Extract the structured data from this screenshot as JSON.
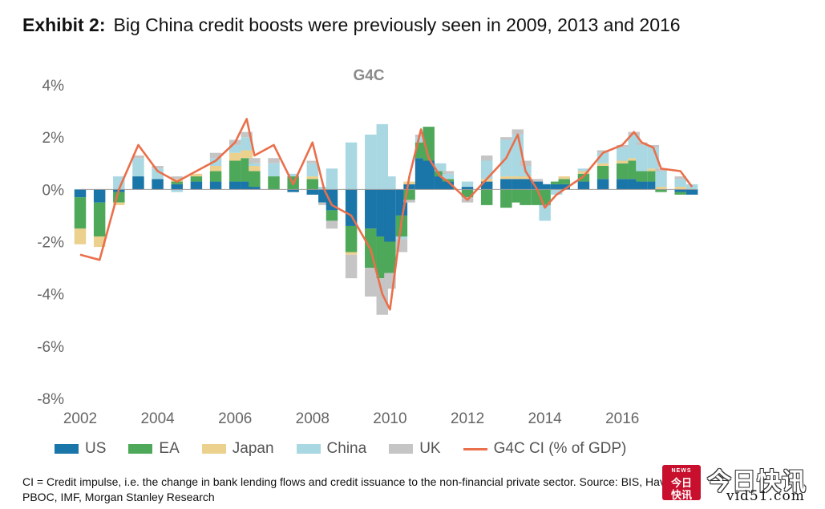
{
  "exhibit": {
    "lead": "Exhibit 2:",
    "title": "Big China credit boosts were previously seen in 2009, 2013 and 2016"
  },
  "chart_data": {
    "type": "bar",
    "subtype": "stacked-bar-with-line",
    "title": "G4C",
    "xlabel": "",
    "ylabel": "",
    "ylim": [
      -8,
      4
    ],
    "y_ticks": [
      "4%",
      "2%",
      "0%",
      "-2%",
      "-4%",
      "-6%",
      "-8%"
    ],
    "y_tick_values": [
      4,
      2,
      0,
      -2,
      -4,
      -6,
      -8
    ],
    "x_ticks": [
      "2002",
      "2004",
      "2006",
      "2008",
      "2010",
      "2012",
      "2014",
      "2016"
    ],
    "x_tick_values": [
      2002,
      2004,
      2006,
      2008,
      2010,
      2012,
      2014,
      2016
    ],
    "xlim": [
      2002,
      2017.9
    ],
    "grid": false,
    "legend_placement": "bottom",
    "colors": {
      "US": "#1a75a8",
      "EA": "#4ea85a",
      "Japan": "#ecd08e",
      "China": "#a9d8e2",
      "UK": "#c5c5c5",
      "G4C CI (% of GDP)": "#ea6f4b"
    },
    "x": [
      2002.0,
      2002.5,
      2003.0,
      2003.5,
      2004.0,
      2004.5,
      2005.0,
      2005.5,
      2006.0,
      2006.3,
      2006.5,
      2007.0,
      2007.5,
      2008.0,
      2008.3,
      2008.5,
      2009.0,
      2009.5,
      2009.8,
      2010.0,
      2010.3,
      2010.5,
      2010.8,
      2011.0,
      2011.3,
      2011.5,
      2012.0,
      2012.5,
      2013.0,
      2013.3,
      2013.5,
      2013.8,
      2014.0,
      2014.3,
      2014.5,
      2015.0,
      2015.5,
      2016.0,
      2016.3,
      2016.5,
      2016.8,
      2017.0,
      2017.5,
      2017.8
    ],
    "series": [
      {
        "name": "US",
        "kind": "bar",
        "values": [
          -0.3,
          -0.5,
          -0.1,
          0.5,
          0.4,
          0.2,
          0.3,
          0.3,
          0.3,
          0.3,
          0.1,
          0.0,
          -0.1,
          -0.2,
          -0.5,
          -0.8,
          -1.4,
          -1.5,
          -1.8,
          -2.0,
          -1.0,
          0.2,
          1.2,
          1.1,
          0.5,
          0.3,
          0.1,
          0.3,
          0.4,
          0.4,
          0.4,
          0.3,
          0.2,
          0.2,
          0.2,
          0.3,
          0.4,
          0.4,
          0.4,
          0.3,
          0.3,
          0.0,
          -0.1,
          -0.2
        ]
      },
      {
        "name": "EA",
        "kind": "bar",
        "values": [
          -1.2,
          -1.3,
          -0.4,
          0.0,
          0.0,
          0.1,
          0.2,
          0.4,
          0.8,
          0.9,
          0.6,
          0.5,
          0.5,
          0.4,
          0.0,
          -0.4,
          -1.0,
          -1.5,
          -1.6,
          -1.2,
          -0.8,
          -0.4,
          0.6,
          1.3,
          0.2,
          0.1,
          -0.3,
          -0.6,
          -0.7,
          -0.5,
          -0.6,
          -0.6,
          -0.6,
          0.1,
          0.2,
          0.3,
          0.5,
          0.6,
          0.7,
          0.4,
          0.4,
          -0.1,
          -0.1,
          0.0
        ]
      },
      {
        "name": "Japan",
        "kind": "bar",
        "values": [
          -0.6,
          -0.4,
          -0.1,
          0.0,
          0.0,
          0.1,
          0.1,
          0.2,
          0.3,
          0.3,
          0.2,
          0.0,
          0.0,
          0.1,
          0.0,
          0.0,
          -0.1,
          0.0,
          0.0,
          0.0,
          0.0,
          0.1,
          0.0,
          0.0,
          0.0,
          0.0,
          0.0,
          0.1,
          0.1,
          0.1,
          0.1,
          0.0,
          0.0,
          0.0,
          0.1,
          0.1,
          0.1,
          0.1,
          0.1,
          0.0,
          0.1,
          0.1,
          0.1,
          0.0
        ]
      },
      {
        "name": "China",
        "kind": "bar",
        "values": [
          0.0,
          0.0,
          0.5,
          0.7,
          0.4,
          -0.1,
          0.0,
          0.3,
          0.3,
          0.5,
          0.1,
          0.5,
          0.1,
          0.5,
          0.1,
          0.8,
          1.8,
          2.1,
          2.5,
          0.5,
          -0.1,
          0.0,
          0.2,
          0.0,
          0.3,
          0.2,
          0.2,
          0.7,
          1.4,
          1.6,
          0.4,
          0.0,
          -0.6,
          -0.2,
          0.0,
          0.1,
          0.4,
          0.5,
          0.9,
          1.0,
          0.8,
          0.6,
          0.3,
          0.2
        ]
      },
      {
        "name": "UK",
        "kind": "bar",
        "values": [
          0.0,
          0.0,
          0.0,
          0.1,
          0.1,
          0.1,
          0.0,
          0.2,
          0.2,
          0.2,
          0.2,
          0.2,
          0.0,
          0.1,
          -0.1,
          -0.3,
          -0.9,
          -1.1,
          -1.4,
          -0.6,
          -0.5,
          -0.1,
          0.1,
          0.0,
          0.0,
          0.1,
          -0.2,
          0.2,
          0.1,
          0.2,
          0.2,
          0.1,
          0.0,
          0.0,
          0.0,
          0.0,
          0.1,
          0.1,
          0.1,
          0.1,
          0.1,
          0.1,
          0.1,
          0.0
        ]
      },
      {
        "name": "G4C CI (% of GDP)",
        "kind": "line",
        "values": [
          -2.5,
          -2.7,
          0.0,
          1.7,
          0.7,
          0.3,
          0.7,
          1.1,
          1.8,
          2.7,
          1.3,
          1.7,
          0.2,
          1.8,
          0.0,
          -0.6,
          -1.0,
          -2.3,
          -4.0,
          -4.6,
          -1.2,
          0.5,
          2.3,
          1.2,
          0.5,
          0.3,
          -0.4,
          0.4,
          1.2,
          2.1,
          0.7,
          0.0,
          -0.7,
          -0.2,
          0.0,
          0.5,
          1.4,
          1.7,
          2.2,
          1.8,
          1.6,
          0.8,
          0.7,
          0.1
        ]
      }
    ]
  },
  "legend": {
    "items": [
      {
        "label": "US",
        "color": "#1a75a8",
        "kind": "swatch"
      },
      {
        "label": "EA",
        "color": "#4ea85a",
        "kind": "swatch"
      },
      {
        "label": "Japan",
        "color": "#ecd08e",
        "kind": "swatch"
      },
      {
        "label": "China",
        "color": "#a9d8e2",
        "kind": "swatch"
      },
      {
        "label": "UK",
        "color": "#c5c5c5",
        "kind": "swatch"
      },
      {
        "label": "G4C CI (% of GDP)",
        "color": "#ea6f4b",
        "kind": "line"
      }
    ]
  },
  "footnote": {
    "line1": "CI = Credit impulse, i.e. the change in bank lending flows and credit issuance to the non-financial private sector. Source: BIS, Haver,",
    "line2": "PBOC, IMF, Morgan Stanley Research"
  },
  "watermark": {
    "badge_top": "今日",
    "badge_bottom": "快讯",
    "badge_small": "NEWS",
    "name": "今日快讯",
    "site": "vid51.com"
  }
}
